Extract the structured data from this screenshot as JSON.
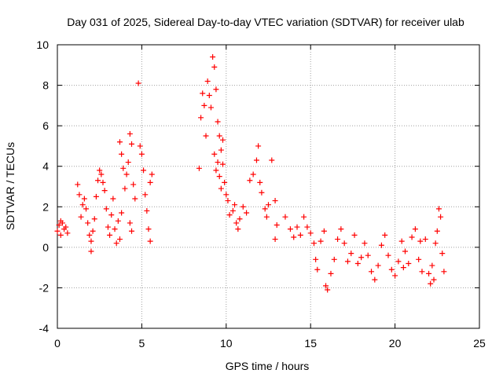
{
  "chart_data": {
    "type": "scatter",
    "title": "Day 031 of 2025, Sidereal Day-to-day VTEC variation (SDTVAR) for receiver ulab",
    "xlabel": "GPS time / hours",
    "ylabel": "SDTVAR / TECUs",
    "xlim": [
      0,
      25
    ],
    "ylim": [
      -4,
      10
    ],
    "xticks": [
      0,
      5,
      10,
      15,
      20,
      25
    ],
    "yticks": [
      -4,
      -2,
      0,
      2,
      4,
      6,
      8,
      10
    ],
    "grid": true,
    "marker": "plus",
    "color": "#ff0000",
    "series": [
      {
        "name": "SDTVAR",
        "points": [
          [
            0.0,
            0.8
          ],
          [
            0.1,
            1.1
          ],
          [
            0.2,
            0.6
          ],
          [
            0.3,
            1.2
          ],
          [
            0.4,
            0.9
          ],
          [
            0.5,
            1.0
          ],
          [
            0.6,
            0.7
          ],
          [
            0.2,
            1.3
          ],
          [
            1.2,
            3.1
          ],
          [
            1.3,
            2.6
          ],
          [
            1.4,
            1.5
          ],
          [
            1.5,
            2.1
          ],
          [
            1.6,
            2.4
          ],
          [
            1.7,
            1.9
          ],
          [
            1.8,
            1.2
          ],
          [
            1.9,
            0.6
          ],
          [
            2.0,
            0.3
          ],
          [
            2.0,
            -0.2
          ],
          [
            2.1,
            0.8
          ],
          [
            2.2,
            1.4
          ],
          [
            2.3,
            2.5
          ],
          [
            2.4,
            3.3
          ],
          [
            2.5,
            3.8
          ],
          [
            2.6,
            3.6
          ],
          [
            2.7,
            3.2
          ],
          [
            2.8,
            2.8
          ],
          [
            2.9,
            1.9
          ],
          [
            3.0,
            1.0
          ],
          [
            3.1,
            0.6
          ],
          [
            3.2,
            1.6
          ],
          [
            3.3,
            2.4
          ],
          [
            3.4,
            0.9
          ],
          [
            3.5,
            0.2
          ],
          [
            3.6,
            1.3
          ],
          [
            3.7,
            5.2
          ],
          [
            3.8,
            4.6
          ],
          [
            3.9,
            3.9
          ],
          [
            3.7,
            0.4
          ],
          [
            3.8,
            1.7
          ],
          [
            4.0,
            2.9
          ],
          [
            4.1,
            3.6
          ],
          [
            4.2,
            4.2
          ],
          [
            4.3,
            5.6
          ],
          [
            4.4,
            5.1
          ],
          [
            4.5,
            3.1
          ],
          [
            4.6,
            2.4
          ],
          [
            4.3,
            1.2
          ],
          [
            4.4,
            0.8
          ],
          [
            4.8,
            8.1
          ],
          [
            4.9,
            5.0
          ],
          [
            5.0,
            4.6
          ],
          [
            5.1,
            3.8
          ],
          [
            5.2,
            2.6
          ],
          [
            5.3,
            1.8
          ],
          [
            5.4,
            0.9
          ],
          [
            5.5,
            0.3
          ],
          [
            5.5,
            3.2
          ],
          [
            5.6,
            3.6
          ],
          [
            8.4,
            3.9
          ],
          [
            8.5,
            6.4
          ],
          [
            8.6,
            7.6
          ],
          [
            8.7,
            7.0
          ],
          [
            8.8,
            5.5
          ],
          [
            8.9,
            8.2
          ],
          [
            9.0,
            7.5
          ],
          [
            9.1,
            6.9
          ],
          [
            9.2,
            9.4
          ],
          [
            9.3,
            8.9
          ],
          [
            9.4,
            7.8
          ],
          [
            9.5,
            6.2
          ],
          [
            9.6,
            5.5
          ],
          [
            9.7,
            4.8
          ],
          [
            9.8,
            4.1
          ],
          [
            9.9,
            3.2
          ],
          [
            10.0,
            2.6
          ],
          [
            10.1,
            2.3
          ],
          [
            9.5,
            4.2
          ],
          [
            9.6,
            3.5
          ],
          [
            9.7,
            2.9
          ],
          [
            9.3,
            4.6
          ],
          [
            9.4,
            3.8
          ],
          [
            9.8,
            5.3
          ],
          [
            10.2,
            1.6
          ],
          [
            10.4,
            1.8
          ],
          [
            10.5,
            2.1
          ],
          [
            10.6,
            1.2
          ],
          [
            10.7,
            0.9
          ],
          [
            10.8,
            1.4
          ],
          [
            11.0,
            2.0
          ],
          [
            11.2,
            1.7
          ],
          [
            11.4,
            3.3
          ],
          [
            11.6,
            3.6
          ],
          [
            11.8,
            4.3
          ],
          [
            11.9,
            5.0
          ],
          [
            12.0,
            3.2
          ],
          [
            12.1,
            2.7
          ],
          [
            12.3,
            1.9
          ],
          [
            12.4,
            1.5
          ],
          [
            12.5,
            2.1
          ],
          [
            12.7,
            4.3
          ],
          [
            12.9,
            2.3
          ],
          [
            13.0,
            1.1
          ],
          [
            12.9,
            0.4
          ],
          [
            13.5,
            1.5
          ],
          [
            13.8,
            0.9
          ],
          [
            14.0,
            0.5
          ],
          [
            14.2,
            1.0
          ],
          [
            14.4,
            0.6
          ],
          [
            14.6,
            1.5
          ],
          [
            14.8,
            1.0
          ],
          [
            15.0,
            0.7
          ],
          [
            15.2,
            0.2
          ],
          [
            15.3,
            -0.6
          ],
          [
            15.4,
            -1.1
          ],
          [
            15.6,
            0.3
          ],
          [
            15.8,
            0.8
          ],
          [
            15.9,
            -1.9
          ],
          [
            16.0,
            -2.1
          ],
          [
            16.2,
            -1.3
          ],
          [
            16.4,
            -0.6
          ],
          [
            16.6,
            0.4
          ],
          [
            16.8,
            0.9
          ],
          [
            17.0,
            0.2
          ],
          [
            17.2,
            -0.7
          ],
          [
            17.4,
            -0.3
          ],
          [
            17.6,
            0.6
          ],
          [
            17.8,
            -0.8
          ],
          [
            18.0,
            -0.5
          ],
          [
            18.2,
            0.2
          ],
          [
            18.4,
            -0.4
          ],
          [
            18.6,
            -1.2
          ],
          [
            18.8,
            -1.6
          ],
          [
            19.0,
            -0.9
          ],
          [
            19.2,
            0.1
          ],
          [
            19.4,
            0.6
          ],
          [
            19.6,
            -0.4
          ],
          [
            19.8,
            -1.1
          ],
          [
            20.0,
            -1.4
          ],
          [
            20.2,
            -0.7
          ],
          [
            20.4,
            0.3
          ],
          [
            20.6,
            -0.2
          ],
          [
            20.8,
            -0.8
          ],
          [
            21.0,
            0.5
          ],
          [
            21.2,
            0.9
          ],
          [
            21.4,
            -0.6
          ],
          [
            21.6,
            -1.2
          ],
          [
            21.8,
            0.4
          ],
          [
            22.0,
            -1.3
          ],
          [
            22.1,
            -1.8
          ],
          [
            22.2,
            -0.9
          ],
          [
            22.4,
            0.2
          ],
          [
            22.6,
            1.9
          ],
          [
            22.7,
            1.5
          ],
          [
            22.8,
            -0.3
          ],
          [
            22.9,
            -1.2
          ],
          [
            22.5,
            0.8
          ],
          [
            22.3,
            -1.6
          ],
          [
            21.5,
            0.3
          ],
          [
            20.5,
            -1.0
          ]
        ]
      }
    ]
  }
}
